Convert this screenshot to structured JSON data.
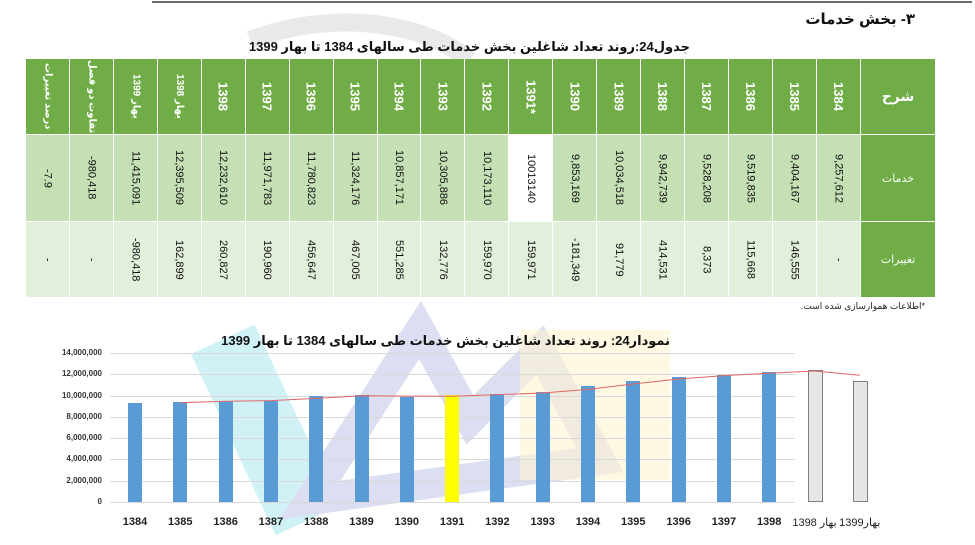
{
  "section_heading": "۳- بخش خدمات",
  "table": {
    "title": "جدول24:روند تعداد شاغلین بخش خدمات طی سالهای 1384 تا بهار 1399",
    "label_header": "شرح",
    "row_labels": [
      "خدمات",
      "تغییرات"
    ],
    "columns": [
      {
        "header": "1384",
        "services": "9,257,612",
        "changes": "-"
      },
      {
        "header": "1385",
        "services": "9,404,167",
        "changes": "146,555"
      },
      {
        "header": "1386",
        "services": "9,519,835",
        "changes": "115,668"
      },
      {
        "header": "1387",
        "services": "9,528,208",
        "changes": "8,373"
      },
      {
        "header": "1388",
        "services": "9,942,739",
        "changes": "414,531"
      },
      {
        "header": "1389",
        "services": "10,034,518",
        "changes": "91,779"
      },
      {
        "header": "1390",
        "services": "9,853,169",
        "changes": "-181,349"
      },
      {
        "header": "1391*",
        "services": "10013140",
        "changes": "159,971",
        "highlight": true
      },
      {
        "header": "1392",
        "services": "10,173,110",
        "changes": "159,970"
      },
      {
        "header": "1393",
        "services": "10,305,886",
        "changes": "132,776"
      },
      {
        "header": "1394",
        "services": "10,857,171",
        "changes": "551,285"
      },
      {
        "header": "1395",
        "services": "11,324,176",
        "changes": "467,005"
      },
      {
        "header": "1396",
        "services": "11,780,823",
        "changes": "456,647"
      },
      {
        "header": "1397",
        "services": "11,971,783",
        "changes": "190,960"
      },
      {
        "header": "1398",
        "services": "12,232,610",
        "changes": "260,827"
      },
      {
        "header": "بهار 1398",
        "services": "12,395,509",
        "changes": "162,899"
      },
      {
        "header": "بهار 1399",
        "services": "11,415,091",
        "changes": "-980,418"
      },
      {
        "header": "تفاوت دو فصل",
        "services": "-980,418",
        "changes": "-"
      },
      {
        "header": "درصد تغییرات",
        "services": "-7.9",
        "changes": "-"
      }
    ],
    "footnote": "*اطلاعات هموارسازی شده است."
  },
  "chart_data": {
    "type": "bar",
    "title": "نمودار24: روند تعداد شاغلین بخش خدمات طی سالهای 1384 تا بهار 1399",
    "xlabel": "",
    "ylabel": "",
    "ylim": [
      0,
      14000000
    ],
    "y_ticks": [
      "14,000,000",
      "12,000,000",
      "10,000,000",
      "8,000,000",
      "6,000,000",
      "4,000,000",
      "2,000,000",
      "0"
    ],
    "grid": true,
    "legend": null,
    "categories": [
      "1384",
      "1385",
      "1386",
      "1387",
      "1388",
      "1389",
      "1390",
      "1391",
      "1392",
      "1393",
      "1394",
      "1395",
      "1396",
      "1397",
      "1398",
      "بهار 1398",
      "بهار1399"
    ],
    "values": [
      9257612,
      9404167,
      9519835,
      9528208,
      9942739,
      10034518,
      9853169,
      10013140,
      10173110,
      10305886,
      10857171,
      11324176,
      11780823,
      11971783,
      12232610,
      12395509,
      11415091
    ],
    "bar_colors": [
      "#5b9bd5",
      "#5b9bd5",
      "#5b9bd5",
      "#5b9bd5",
      "#5b9bd5",
      "#5b9bd5",
      "#5b9bd5",
      "#ffff00",
      "#5b9bd5",
      "#5b9bd5",
      "#5b9bd5",
      "#5b9bd5",
      "#5b9bd5",
      "#5b9bd5",
      "#5b9bd5",
      "#e7e6e6",
      "#e7e6e6"
    ],
    "trend_line": {
      "color": "#e06666",
      "style": "moving-average",
      "from_index": 1
    }
  },
  "colors": {
    "header_green": "#70ad47",
    "row1_green": "#c5e0b4",
    "row2_green": "#e2efda",
    "bar_blue": "#5b9bd5",
    "highlight_yellow": "#ffff00",
    "bar_gray": "#e7e6e6"
  }
}
